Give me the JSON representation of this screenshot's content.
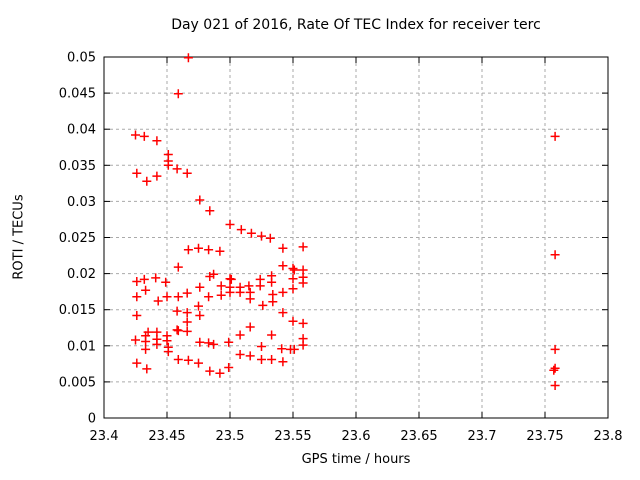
{
  "page": {
    "background": "#ffffff"
  },
  "chart_data": {
    "type": "scatter",
    "title": "Day 021 of 2016, Rate Of TEC Index for receiver terc",
    "xlabel": "GPS time / hours",
    "ylabel": "ROTI / TECUs",
    "xlim": [
      23.4,
      23.8
    ],
    "ylim": [
      0,
      0.05
    ],
    "xtick_values": [
      23.4,
      23.45,
      23.5,
      23.55,
      23.6,
      23.65,
      23.7,
      23.75,
      23.8
    ],
    "xtick_labels": [
      "23.4",
      "23.45",
      "23.5",
      "23.55",
      "23.6",
      "23.65",
      "23.7",
      "23.75",
      "23.8"
    ],
    "ytick_values": [
      0,
      0.005,
      0.01,
      0.015,
      0.02,
      0.025,
      0.03,
      0.035,
      0.04,
      0.045,
      0.05
    ],
    "ytick_labels": [
      "0",
      "0.005",
      "0.01",
      "0.015",
      "0.02",
      "0.025",
      "0.03",
      "0.035",
      "0.04",
      "0.045",
      "0.05"
    ],
    "grid": true,
    "legend": "none",
    "axis_color": "#000000",
    "grid_color": "#aaaaaa",
    "marker": {
      "shape": "plus",
      "color": "#ff0000",
      "size": 9
    },
    "series_name": "ROTI",
    "points": [
      [
        23.467,
        0.0499
      ],
      [
        23.459,
        0.0449
      ],
      [
        23.425,
        0.0392
      ],
      [
        23.432,
        0.039
      ],
      [
        23.442,
        0.0384
      ],
      [
        23.451,
        0.0365
      ],
      [
        23.451,
        0.0356
      ],
      [
        23.451,
        0.035
      ],
      [
        23.458,
        0.0345
      ],
      [
        23.426,
        0.0339
      ],
      [
        23.466,
        0.0339
      ],
      [
        23.442,
        0.0335
      ],
      [
        23.434,
        0.0328
      ],
      [
        23.476,
        0.0302
      ],
      [
        23.484,
        0.0287
      ],
      [
        23.5,
        0.0268
      ],
      [
        23.509,
        0.0261
      ],
      [
        23.517,
        0.0256
      ],
      [
        23.525,
        0.0252
      ],
      [
        23.532,
        0.0249
      ],
      [
        23.467,
        0.0233
      ],
      [
        23.475,
        0.0235
      ],
      [
        23.483,
        0.0233
      ],
      [
        23.492,
        0.0231
      ],
      [
        23.542,
        0.0235
      ],
      [
        23.558,
        0.0237
      ],
      [
        23.459,
        0.0209
      ],
      [
        23.542,
        0.0211
      ],
      [
        23.55,
        0.0207
      ],
      [
        23.551,
        0.0205
      ],
      [
        23.558,
        0.0205
      ],
      [
        23.426,
        0.0189
      ],
      [
        23.432,
        0.0192
      ],
      [
        23.441,
        0.0194
      ],
      [
        23.449,
        0.0188
      ],
      [
        23.484,
        0.0196
      ],
      [
        23.487,
        0.0199
      ],
      [
        23.5,
        0.0193
      ],
      [
        23.501,
        0.0192
      ],
      [
        23.524,
        0.0192
      ],
      [
        23.533,
        0.0197
      ],
      [
        23.55,
        0.0193
      ],
      [
        23.558,
        0.0195
      ],
      [
        23.433,
        0.0177
      ],
      [
        23.426,
        0.0168
      ],
      [
        23.443,
        0.0162
      ],
      [
        23.45,
        0.0168
      ],
      [
        23.459,
        0.0168
      ],
      [
        23.466,
        0.0173
      ],
      [
        23.476,
        0.0181
      ],
      [
        23.483,
        0.0168
      ],
      [
        23.493,
        0.0183
      ],
      [
        23.493,
        0.017
      ],
      [
        23.5,
        0.0181
      ],
      [
        23.5,
        0.0174
      ],
      [
        23.508,
        0.0181
      ],
      [
        23.508,
        0.0174
      ],
      [
        23.515,
        0.0183
      ],
      [
        23.516,
        0.0174
      ],
      [
        23.516,
        0.0165
      ],
      [
        23.524,
        0.0183
      ],
      [
        23.533,
        0.0188
      ],
      [
        23.534,
        0.0171
      ],
      [
        23.534,
        0.0161
      ],
      [
        23.542,
        0.0174
      ],
      [
        23.55,
        0.0179
      ],
      [
        23.558,
        0.0187
      ],
      [
        23.526,
        0.0156
      ],
      [
        23.426,
        0.0142
      ],
      [
        23.458,
        0.0148
      ],
      [
        23.466,
        0.0146
      ],
      [
        23.475,
        0.0155
      ],
      [
        23.476,
        0.0142
      ],
      [
        23.466,
        0.0133
      ],
      [
        23.542,
        0.0146
      ],
      [
        23.55,
        0.0134
      ],
      [
        23.558,
        0.0131
      ],
      [
        23.516,
        0.0126
      ],
      [
        23.425,
        0.0108
      ],
      [
        23.433,
        0.0114
      ],
      [
        23.433,
        0.0106
      ],
      [
        23.433,
        0.0095
      ],
      [
        23.435,
        0.0119
      ],
      [
        23.442,
        0.0119
      ],
      [
        23.442,
        0.0109
      ],
      [
        23.442,
        0.0102
      ],
      [
        23.45,
        0.0114
      ],
      [
        23.45,
        0.0107
      ],
      [
        23.451,
        0.0098
      ],
      [
        23.451,
        0.0092
      ],
      [
        23.458,
        0.0122
      ],
      [
        23.459,
        0.0121
      ],
      [
        23.466,
        0.012
      ],
      [
        23.476,
        0.0105
      ],
      [
        23.483,
        0.0104
      ],
      [
        23.487,
        0.0102
      ],
      [
        23.499,
        0.0105
      ],
      [
        23.508,
        0.0115
      ],
      [
        23.533,
        0.0115
      ],
      [
        23.525,
        0.0099
      ],
      [
        23.541,
        0.0096
      ],
      [
        23.548,
        0.0095
      ],
      [
        23.551,
        0.0095
      ],
      [
        23.558,
        0.011
      ],
      [
        23.558,
        0.0101
      ],
      [
        23.508,
        0.0088
      ],
      [
        23.516,
        0.0086
      ],
      [
        23.525,
        0.0081
      ],
      [
        23.533,
        0.0081
      ],
      [
        23.542,
        0.0078
      ],
      [
        23.426,
        0.0076
      ],
      [
        23.434,
        0.0068
      ],
      [
        23.459,
        0.0081
      ],
      [
        23.467,
        0.008
      ],
      [
        23.475,
        0.0076
      ],
      [
        23.484,
        0.0065
      ],
      [
        23.499,
        0.007
      ],
      [
        23.492,
        0.0062
      ],
      [
        23.758,
        0.039
      ],
      [
        23.758,
        0.0226
      ],
      [
        23.758,
        0.0095
      ],
      [
        23.758,
        0.0069
      ],
      [
        23.757,
        0.0066
      ],
      [
        23.758,
        0.0045
      ]
    ]
  }
}
